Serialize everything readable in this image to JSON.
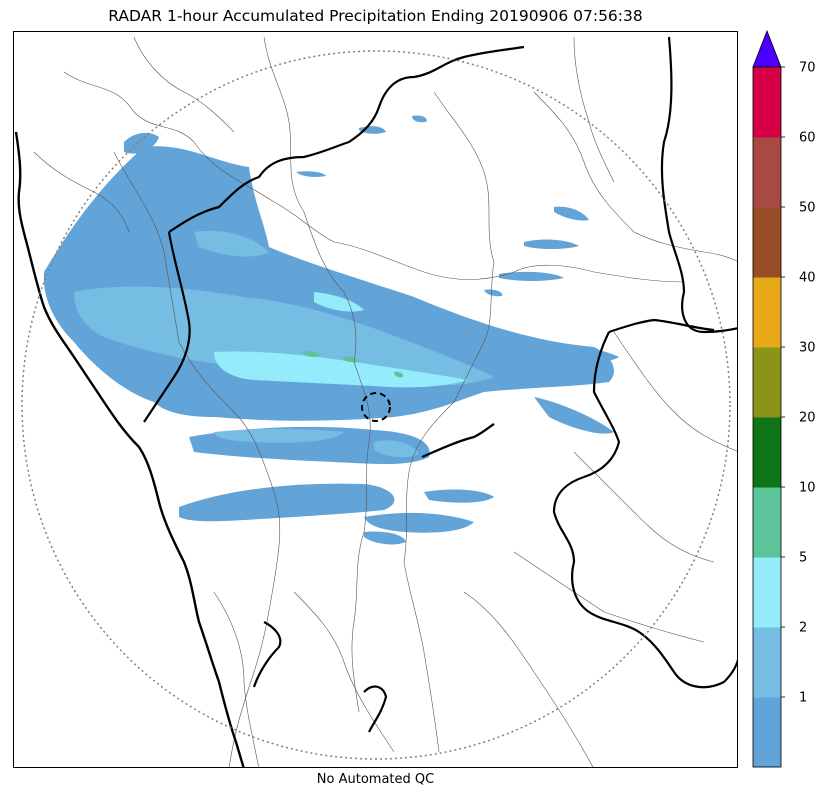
{
  "title": "RADAR 1-hour Accumulated Precipitation Ending 20190906 07:56:38",
  "footer_note": "No Automated QC",
  "colorbar": {
    "extend": "max",
    "extend_color": "#4b00ff",
    "bins": [
      {
        "color": "#63a4d8"
      },
      {
        "color": "#76bde3"
      },
      {
        "color": "#93ebfb"
      },
      {
        "color": "#5bc49b"
      },
      {
        "color": "#0f7518"
      },
      {
        "color": "#8a9417"
      },
      {
        "color": "#e8a919"
      },
      {
        "color": "#9a4e27"
      },
      {
        "color": "#a84a42"
      },
      {
        "color": "#d50045"
      }
    ],
    "tick_labels": [
      "1",
      "2",
      "5",
      "10",
      "20",
      "30",
      "40",
      "50",
      "60",
      "70"
    ]
  },
  "map": {
    "range_ring_color": "#808080",
    "coastline_color": "#000000",
    "border_color": "#000000",
    "district_color": "#555555"
  }
}
